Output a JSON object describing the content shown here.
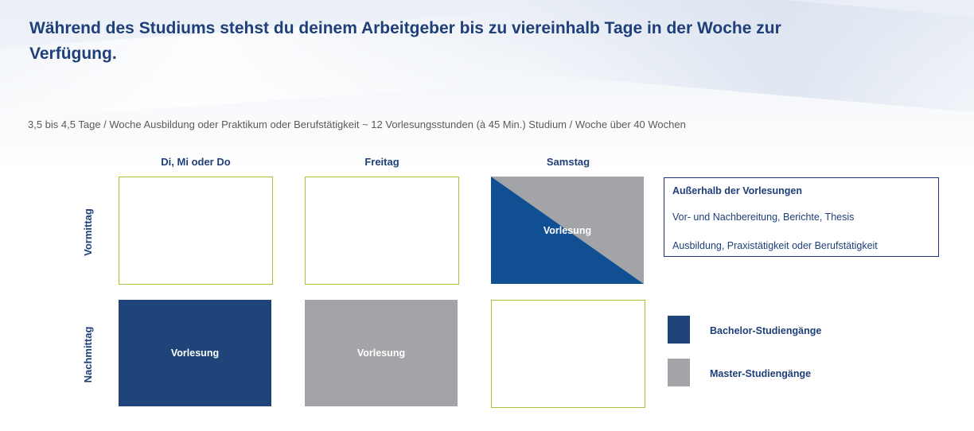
{
  "title": "Während des Studiums stehst du deinem  Arbeitgeber bis zu viereinhalb Tage in der Woche zur Verfügung.",
  "subtitle": "3,5 bis 4,5 Tage / Woche Ausbildung oder Praktikum oder Berufstätigkeit ~ 12 Vorlesungsstunden (à 45 Min.) Studium / Woche über 40 Wochen",
  "columns": [
    "Di, Mi oder Do",
    "Freitag",
    "Samstag"
  ],
  "rows": [
    "Vormittag",
    "Nachmittag"
  ],
  "cells": {
    "lecture_label": "Vorlesung"
  },
  "info_box": {
    "title": "Außerhalb der Vorlesungen",
    "lines": [
      "Vor- und Nachbereitung, Berichte, Thesis",
      "Ausbildung, Praxistätigkeit oder Berufstätigkeit"
    ]
  },
  "legend": [
    {
      "label": "Bachelor-Studiengänge",
      "color": "#1f4479"
    },
    {
      "label": "Master-Studiengänge",
      "color": "#a3a4a8"
    }
  ],
  "colors": {
    "bachelor": "#1f4479",
    "master": "#a3a4a8",
    "empty_border": "#a3c33a",
    "title": "#1e3f78"
  }
}
